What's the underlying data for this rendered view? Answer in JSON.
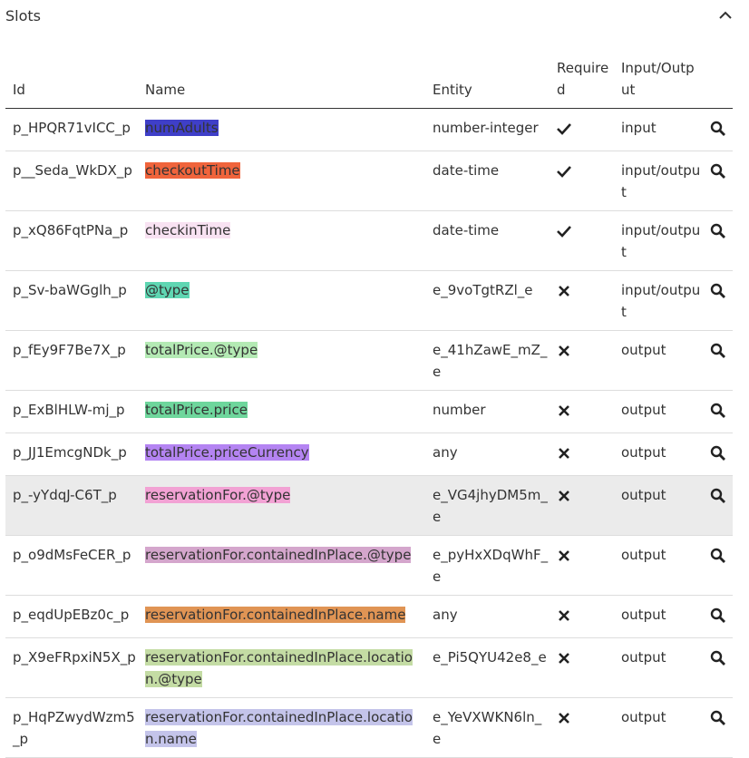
{
  "header": {
    "title": "Slots"
  },
  "table": {
    "columns": [
      "Id",
      "Name",
      "Entity",
      "Required",
      "Input/Output"
    ],
    "selected_row": 7,
    "rows": [
      {
        "id": "p_HPQR71vICC_p",
        "name": "numAdults",
        "color": "#3f3fc8",
        "entity": "number-integer",
        "required": true,
        "io": "input"
      },
      {
        "id": "p__Seda_WkDX_p",
        "name": "checkoutTime",
        "color": "#f0643c",
        "entity": "date-time",
        "required": true,
        "io": "input/output"
      },
      {
        "id": "p_xQ86FqtPNa_p",
        "name": "checkinTime",
        "color": "#f8e2f2",
        "entity": "date-time",
        "required": true,
        "io": "input/output"
      },
      {
        "id": "p_Sv-baWGglh_p",
        "name": "@type",
        "color": "#5fd6b2",
        "entity": "e_9voTgtRZl_e",
        "required": false,
        "io": "input/output"
      },
      {
        "id": "p_fEy9F7Be7X_p",
        "name": "totalPrice.@type",
        "color": "#b4eab4",
        "entity": "e_41hZawE_mZ_e",
        "required": false,
        "io": "output"
      },
      {
        "id": "p_ExBlHLW-mj_p",
        "name": "totalPrice.price",
        "color": "#6ed69c",
        "entity": "number",
        "required": false,
        "io": "output"
      },
      {
        "id": "p_JJ1EmcgNDk_p",
        "name": "totalPrice.priceCurrency",
        "color": "#b484f2",
        "entity": "any",
        "required": false,
        "io": "output"
      },
      {
        "id": "p_-yYdqJ-C6T_p",
        "name": "reservationFor.@type",
        "color": "#f2a2d4",
        "entity": "e_VG4jhyDM5m_e",
        "required": false,
        "io": "output"
      },
      {
        "id": "p_o9dMsFeCER_p",
        "name": "reservationFor.containedInPlace.@type",
        "color": "#d4a6cc",
        "entity": "e_pyHxXDqWhF_e",
        "required": false,
        "io": "output"
      },
      {
        "id": "p_eqdUpEBz0c_p",
        "name": "reservationFor.containedInPlace.name",
        "color": "#e09454",
        "entity": "any",
        "required": false,
        "io": "output"
      },
      {
        "id": "p_X9eFRpxiN5X_p",
        "name": "reservationFor.containedInPlace.location.@type",
        "color": "#c4dca4",
        "entity": "e_Pi5QYU42e8_e",
        "required": false,
        "io": "output"
      },
      {
        "id": "p_HqPZwydWzm5_p",
        "name": "reservationFor.containedInPlace.location.name",
        "color": "#c4c4ea",
        "entity": "e_YeVXWKN6ln_e",
        "required": false,
        "io": "output"
      }
    ]
  }
}
